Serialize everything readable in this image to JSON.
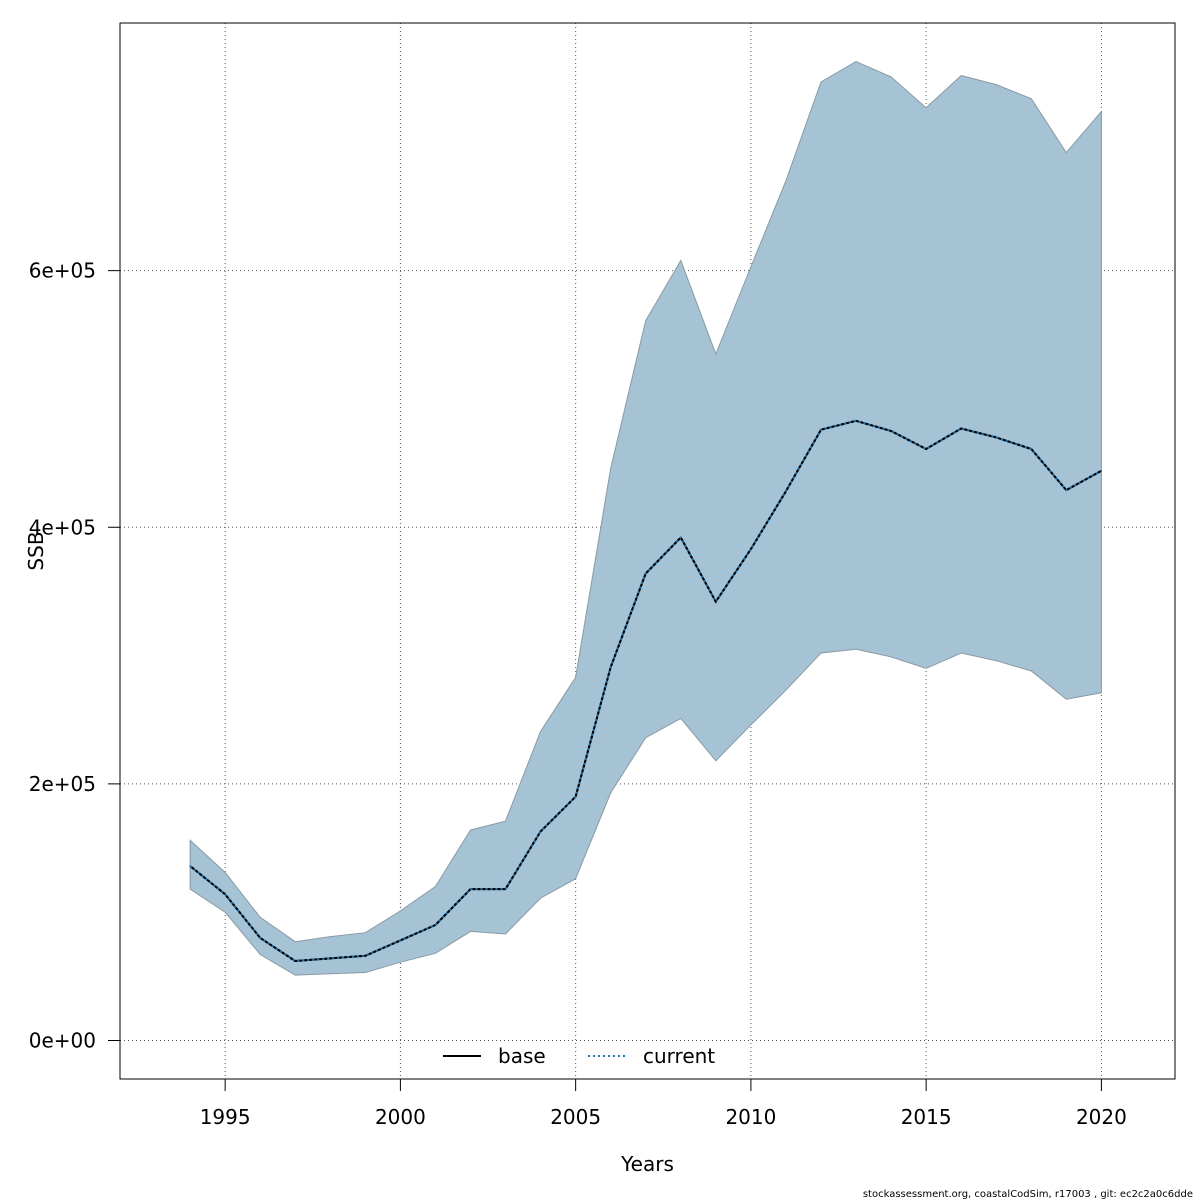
{
  "chart_data": {
    "type": "area",
    "xlabel": "Years",
    "ylabel": "SSB",
    "xlim": [
      1992,
      2022.1
    ],
    "ylim": [
      -30000,
      793000
    ],
    "xticks": [
      1995,
      2000,
      2005,
      2010,
      2015,
      2020
    ],
    "yticks": [
      0,
      200000,
      400000,
      600000
    ],
    "ytick_labels": [
      "0e+00",
      "2e+05",
      "4e+05",
      "6e+05"
    ],
    "grid": true,
    "legend_position": "bottom-center",
    "x": [
      1994,
      1995,
      1996,
      1997,
      1998,
      1999,
      2000,
      2001,
      2002,
      2003,
      2004,
      2005,
      2006,
      2007,
      2008,
      2009,
      2010,
      2011,
      2012,
      2013,
      2014,
      2015,
      2016,
      2017,
      2018,
      2019,
      2020
    ],
    "band": {
      "lower": [
        118000,
        100000,
        67000,
        51000,
        52000,
        53000,
        61000,
        68000,
        85000,
        83000,
        111000,
        126000,
        193000,
        236000,
        251000,
        218000,
        246000,
        273000,
        302000,
        305000,
        299000,
        290000,
        302000,
        296000,
        288000,
        266000,
        271000
      ],
      "upper": [
        156000,
        131000,
        96000,
        77000,
        81000,
        84000,
        101000,
        120000,
        164000,
        171000,
        241000,
        283000,
        446000,
        561000,
        608000,
        535000,
        603000,
        670000,
        747000,
        763000,
        751000,
        727000,
        752000,
        745000,
        734000,
        692000,
        724000
      ],
      "fill_color": "#a5c3d4",
      "edge_color": "#8a9aa5"
    },
    "series": [
      {
        "name": "base",
        "color": "#000000",
        "line_style": "solid",
        "values": [
          136000,
          114000,
          80000,
          62000,
          64000,
          66000,
          78000,
          90000,
          118000,
          118000,
          163000,
          190000,
          291000,
          364000,
          392000,
          342000,
          383000,
          428000,
          476000,
          483000,
          475000,
          461000,
          477000,
          470000,
          461000,
          429000,
          444000
        ]
      },
      {
        "name": "current",
        "color": "#1f77b4",
        "line_style": "dotted",
        "values": [
          136000,
          114000,
          80000,
          62000,
          64000,
          66000,
          78000,
          90000,
          118000,
          118000,
          163000,
          190000,
          291000,
          364000,
          392000,
          342000,
          383000,
          428000,
          476000,
          483000,
          475000,
          461000,
          477000,
          470000,
          461000,
          429000,
          444000
        ]
      }
    ],
    "footnote": "stockassessment.org, coastalCodSim, r17003 , git: ec2c2a0c6dde"
  }
}
